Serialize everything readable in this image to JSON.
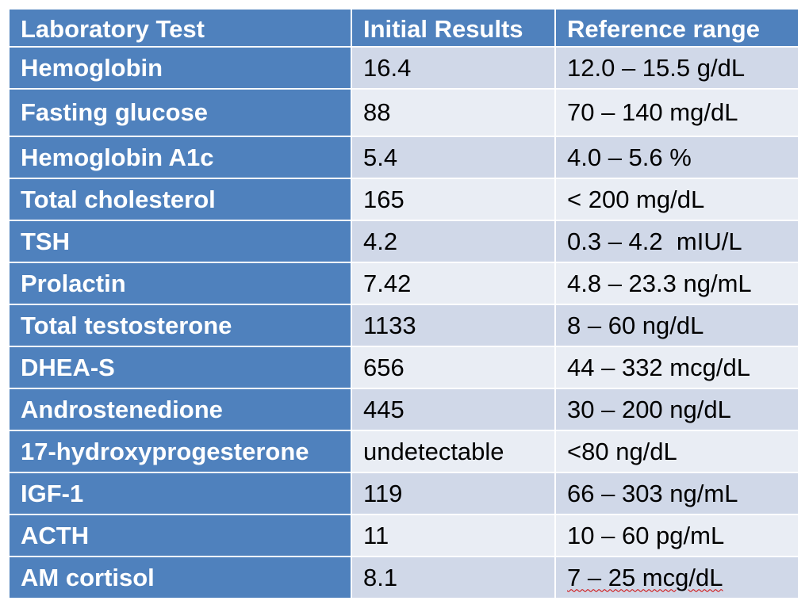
{
  "table": {
    "headers": [
      "Laboratory Test",
      "Initial Results",
      "Reference range"
    ],
    "rows": [
      {
        "test": "Hemoglobin",
        "result": "16.4",
        "reference": "12.0 – 15.5 g/dL"
      },
      {
        "test": "Fasting glucose",
        "result": "88",
        "reference": "70 – 140 mg/dL"
      },
      {
        "test": "Hemoglobin A1c",
        "result": "5.4",
        "reference": "4.0 – 5.6 %"
      },
      {
        "test": "Total cholesterol",
        "result": "165",
        "reference": "< 200 mg/dL"
      },
      {
        "test": "TSH",
        "result": "4.2",
        "reference": "0.3 – 4.2  mIU/L"
      },
      {
        "test": "Prolactin",
        "result": "7.42",
        "reference": "4.8 – 23.3 ng/mL"
      },
      {
        "test": "Total testosterone",
        "result": "1133",
        "reference": "8 – 60 ng/dL"
      },
      {
        "test": "DHEA-S",
        "result": "656",
        "reference": "44 – 332 mcg/dL"
      },
      {
        "test": "Androstenedione",
        "result": "445",
        "reference": "30 – 200 ng/dL"
      },
      {
        "test": "17-hydroxyprogesterone",
        "result": "undetectable",
        "reference": "<80 ng/dL"
      },
      {
        "test": "IGF-1",
        "result": "119",
        "reference": "66 – 303 ng/mL"
      },
      {
        "test": "ACTH",
        "result": "11",
        "reference": "10 – 60 pg/mL"
      },
      {
        "test": "AM cortisol",
        "result": "8.1",
        "reference": "7 – 25 mcg/dL"
      }
    ]
  },
  "colors": {
    "header_bg": "#4f81bd",
    "row_odd_bg": "#d0d8e8",
    "row_even_bg": "#e9edf4",
    "spellcheck_underline": "#d00000"
  }
}
